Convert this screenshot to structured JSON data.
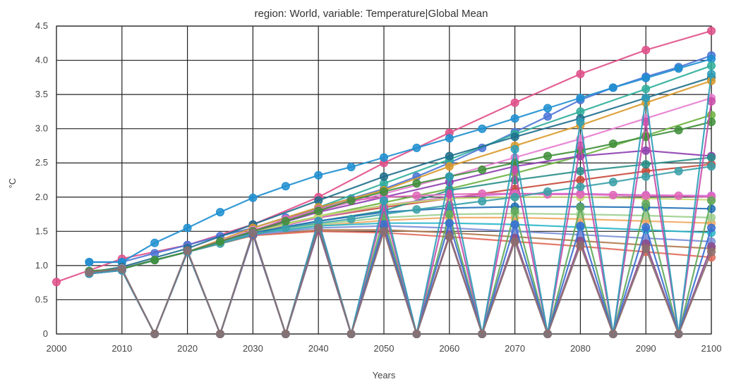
{
  "chart_data": {
    "type": "line",
    "title": "region: World, variable: Temperature|Global Mean",
    "xlabel": "Years",
    "ylabel": "°C",
    "xlim": [
      2000,
      2100
    ],
    "ylim": [
      0,
      4.5
    ],
    "x_ticks": [
      "2000",
      "2010",
      "2020",
      "2030",
      "2040",
      "2050",
      "2060",
      "2070",
      "2080",
      "2090",
      "2100"
    ],
    "y_ticks": [
      "0",
      "0.5",
      "1.0",
      "1.5",
      "2.0",
      "2.5",
      "3.0",
      "3.5",
      "4.0",
      "4.5"
    ],
    "grid": true,
    "legend": "none",
    "series": [
      {
        "color": "#e0508a",
        "x": [
          2000,
          2010,
          2020,
          2030,
          2040,
          2050,
          2060,
          2070,
          2080,
          2090,
          2100
        ],
        "values": [
          0.76,
          1.1,
          1.3,
          1.6,
          2.0,
          2.5,
          2.94,
          3.38,
          3.8,
          4.15,
          4.43
        ]
      },
      {
        "color": "#4a74d6",
        "x": [
          2005,
          2010,
          2015,
          2020,
          2025,
          2030,
          2035,
          2040,
          2045,
          2050,
          2055,
          2060,
          2065,
          2070,
          2075,
          2080,
          2085,
          2090,
          2095,
          2100
        ],
        "values": [
          1.05,
          1.05,
          1.18,
          1.3,
          1.43,
          1.55,
          1.7,
          1.84,
          1.98,
          2.12,
          2.3,
          2.5,
          2.72,
          2.95,
          3.18,
          3.42,
          3.6,
          3.76,
          3.9,
          4.07
        ]
      },
      {
        "color": "#1f8fd0",
        "x": [
          2005,
          2010,
          2015,
          2020,
          2025,
          2030,
          2035,
          2040,
          2045,
          2050,
          2055,
          2060,
          2065,
          2070,
          2075,
          2080,
          2085,
          2090,
          2095,
          2100
        ],
        "values": [
          1.05,
          1.05,
          1.33,
          1.55,
          1.78,
          1.99,
          2.16,
          2.32,
          2.44,
          2.58,
          2.72,
          2.86,
          3.0,
          3.15,
          3.3,
          3.45,
          3.6,
          3.74,
          3.88,
          4.02
        ]
      },
      {
        "color": "#2fae9b",
        "x": [
          2005,
          2010,
          2020,
          2030,
          2040,
          2050,
          2060,
          2070,
          2080,
          2090,
          2100
        ],
        "values": [
          0.9,
          0.95,
          1.2,
          1.5,
          1.85,
          2.2,
          2.55,
          2.92,
          3.25,
          3.58,
          3.92
        ]
      },
      {
        "color": "#1e6e8c",
        "x": [
          2005,
          2010,
          2020,
          2030,
          2040,
          2050,
          2060,
          2070,
          2080,
          2090,
          2100
        ],
        "values": [
          0.9,
          0.98,
          1.25,
          1.6,
          1.95,
          2.3,
          2.6,
          2.88,
          3.15,
          3.45,
          3.75
        ]
      },
      {
        "color": "#d99a2b",
        "x": [
          2005,
          2010,
          2020,
          2030,
          2040,
          2050,
          2060,
          2070,
          2080,
          2090,
          2100
        ],
        "values": [
          0.9,
          0.96,
          1.2,
          1.55,
          1.85,
          2.1,
          2.45,
          2.75,
          3.05,
          3.38,
          3.7
        ]
      },
      {
        "color": "#e57bcf",
        "x": [
          2005,
          2010,
          2020,
          2030,
          2040,
          2050,
          2060,
          2070,
          2080,
          2090,
          2100
        ],
        "values": [
          0.9,
          0.96,
          1.2,
          1.52,
          1.8,
          2.05,
          2.3,
          2.58,
          2.85,
          3.15,
          3.45
        ]
      },
      {
        "color": "#6cb33f",
        "x": [
          2005,
          2010,
          2020,
          2030,
          2040,
          2050,
          2060,
          2070,
          2080,
          2090,
          2100
        ],
        "values": [
          0.9,
          0.96,
          1.2,
          1.5,
          1.72,
          1.92,
          2.12,
          2.35,
          2.6,
          2.9,
          3.2
        ]
      },
      {
        "color": "#8e3fb0",
        "x": [
          2005,
          2010,
          2020,
          2030,
          2040,
          2050,
          2060,
          2070,
          2080,
          2090,
          2100
        ],
        "values": [
          0.9,
          0.96,
          1.2,
          1.5,
          1.78,
          2.0,
          2.22,
          2.45,
          2.6,
          2.68,
          2.6
        ]
      },
      {
        "color": "#c84a3c",
        "x": [
          2005,
          2010,
          2020,
          2030,
          2040,
          2050,
          2060,
          2070,
          2080,
          2090,
          2100
        ],
        "values": [
          0.9,
          0.96,
          1.2,
          1.48,
          1.7,
          1.85,
          1.98,
          2.12,
          2.25,
          2.38,
          2.48
        ]
      },
      {
        "color": "#2a8f8a",
        "x": [
          2005,
          2010,
          2020,
          2030,
          2040,
          2050,
          2060,
          2070,
          2080,
          2090,
          2100
        ],
        "values": [
          0.9,
          0.96,
          1.2,
          1.48,
          1.65,
          1.8,
          2.1,
          2.25,
          2.38,
          2.48,
          2.58
        ]
      },
      {
        "color": "#d06ad8",
        "x": [
          2005,
          2010,
          2020,
          2030,
          2040,
          2050,
          2060,
          2070,
          2080,
          2090,
          2100
        ],
        "values": [
          0.9,
          0.96,
          1.2,
          1.48,
          1.7,
          1.88,
          2.0,
          2.05,
          2.05,
          2.03,
          2.02
        ]
      },
      {
        "color": "#c5d96e",
        "x": [
          2005,
          2010,
          2020,
          2030,
          2040,
          2050,
          2060,
          2070,
          2080,
          2090,
          2100
        ],
        "values": [
          0.9,
          0.96,
          1.2,
          1.48,
          1.72,
          1.88,
          1.98,
          2.0,
          2.0,
          1.98,
          1.96
        ]
      },
      {
        "color": "#1f6fb5",
        "x": [
          2005,
          2010,
          2020,
          2030,
          2040,
          2050,
          2060,
          2070,
          2080,
          2090,
          2100
        ],
        "values": [
          0.9,
          0.96,
          1.2,
          1.48,
          1.65,
          1.78,
          1.84,
          1.86,
          1.86,
          1.85,
          1.83
        ]
      },
      {
        "color": "#f0a860",
        "x": [
          2005,
          2010,
          2020,
          2030,
          2040,
          2050,
          2060,
          2070,
          2080,
          2090,
          2100
        ],
        "values": [
          0.9,
          0.96,
          1.2,
          1.46,
          1.58,
          1.66,
          1.7,
          1.7,
          1.68,
          1.65,
          1.62
        ]
      },
      {
        "color": "#9fcf8f",
        "x": [
          2005,
          2010,
          2020,
          2030,
          2040,
          2050,
          2060,
          2070,
          2080,
          2090,
          2100
        ],
        "values": [
          0.9,
          0.96,
          1.2,
          1.46,
          1.6,
          1.7,
          1.75,
          1.76,
          1.75,
          1.73,
          1.7
        ]
      },
      {
        "color": "#2bb6c9",
        "x": [
          2005,
          2010,
          2020,
          2030,
          2040,
          2050,
          2060,
          2070,
          2080,
          2090,
          2100
        ],
        "values": [
          0.9,
          0.96,
          1.2,
          1.46,
          1.58,
          1.62,
          1.62,
          1.6,
          1.56,
          1.52,
          1.48
        ]
      },
      {
        "color": "#b07a4e",
        "x": [
          2005,
          2010,
          2020,
          2030,
          2040,
          2050,
          2060,
          2070,
          2080,
          2090,
          2100
        ],
        "values": [
          0.9,
          0.96,
          1.2,
          1.44,
          1.52,
          1.52,
          1.48,
          1.42,
          1.36,
          1.3,
          1.25
        ]
      },
      {
        "color": "#e06a5a",
        "x": [
          2005,
          2010,
          2020,
          2030,
          2040,
          2050,
          2060,
          2070,
          2080,
          2090,
          2100
        ],
        "values": [
          0.9,
          0.96,
          1.2,
          1.44,
          1.5,
          1.48,
          1.42,
          1.35,
          1.28,
          1.2,
          1.12
        ]
      },
      {
        "color": "#7a8fd8",
        "x": [
          2005,
          2010,
          2020,
          2030,
          2040,
          2050,
          2060,
          2070,
          2080,
          2090,
          2100
        ],
        "values": [
          0.9,
          0.96,
          1.2,
          1.45,
          1.55,
          1.58,
          1.55,
          1.5,
          1.45,
          1.4,
          1.35
        ]
      },
      {
        "color": "#e066b8",
        "x": [
          2005,
          2010,
          2015,
          2020,
          2025,
          2030,
          2035,
          2040,
          2045,
          2050,
          2055,
          2060,
          2065,
          2070,
          2075,
          2080,
          2085,
          2090,
          2095,
          2100
        ],
        "values": [
          0.92,
          0.95,
          1.08,
          1.2,
          1.35,
          1.5,
          1.68,
          1.82,
          1.95,
          2.0,
          2.02,
          2.04,
          2.05,
          2.05,
          2.04,
          2.04,
          2.03,
          2.02,
          2.02,
          2.0
        ]
      },
      {
        "color": "#3aa0a8",
        "x": [
          2005,
          2010,
          2015,
          2020,
          2025,
          2030,
          2035,
          2040,
          2045,
          2050,
          2055,
          2060,
          2065,
          2070,
          2075,
          2080,
          2085,
          2090,
          2095,
          2100
        ],
        "values": [
          0.92,
          0.95,
          1.08,
          1.2,
          1.32,
          1.45,
          1.55,
          1.62,
          1.68,
          1.75,
          1.82,
          1.88,
          1.94,
          2.0,
          2.08,
          2.15,
          2.22,
          2.3,
          2.38,
          2.45
        ]
      },
      {
        "color": "#3f8f3a",
        "x": [
          2005,
          2010,
          2015,
          2020,
          2025,
          2030,
          2035,
          2040,
          2045,
          2050,
          2055,
          2060,
          2065,
          2070,
          2075,
          2080,
          2085,
          2090,
          2095,
          2100
        ],
        "values": [
          0.92,
          0.95,
          1.08,
          1.2,
          1.35,
          1.5,
          1.65,
          1.8,
          1.95,
          2.08,
          2.2,
          2.3,
          2.4,
          2.5,
          2.6,
          2.68,
          2.78,
          2.88,
          2.98,
          3.1
        ]
      },
      {
        "color": "#8a4a8f",
        "x": [
          2005,
          2010,
          2015,
          2020,
          2025,
          2030,
          2035,
          2040,
          2045,
          2050,
          2055,
          2060,
          2065,
          2070,
          2075,
          2080,
          2085,
          2090,
          2095,
          2100
        ],
        "values": [
          0.88,
          0.93,
          0,
          1.2,
          0,
          1.45,
          0,
          1.52,
          0,
          1.55,
          0,
          1.45,
          0,
          1.4,
          0,
          1.36,
          0,
          1.32,
          0,
          1.28
        ]
      },
      {
        "color": "#5fa85a",
        "x": [
          2005,
          2010,
          2015,
          2020,
          2025,
          2030,
          2035,
          2040,
          2045,
          2050,
          2055,
          2060,
          2065,
          2070,
          2075,
          2080,
          2085,
          2090,
          2095,
          2100
        ],
        "values": [
          0.88,
          0.93,
          0,
          1.2,
          0,
          1.48,
          0,
          1.6,
          0,
          1.7,
          0,
          1.75,
          0,
          1.8,
          0,
          1.85,
          0,
          1.9,
          0,
          1.95
        ]
      },
      {
        "color": "#3b6fd0",
        "x": [
          2005,
          2010,
          2015,
          2020,
          2025,
          2030,
          2035,
          2040,
          2045,
          2050,
          2055,
          2060,
          2065,
          2070,
          2075,
          2080,
          2085,
          2090,
          2095,
          2100
        ],
        "values": [
          0.88,
          0.93,
          0,
          1.2,
          0,
          1.46,
          0,
          1.55,
          0,
          1.6,
          0,
          1.62,
          0,
          1.6,
          0,
          1.58,
          0,
          1.56,
          0,
          1.55
        ]
      },
      {
        "color": "#c84ea8",
        "x": [
          2005,
          2010,
          2015,
          2020,
          2025,
          2030,
          2035,
          2040,
          2045,
          2050,
          2055,
          2060,
          2065,
          2070,
          2075,
          2080,
          2085,
          2090,
          2095,
          2100
        ],
        "values": [
          0.88,
          0.93,
          0,
          1.2,
          0,
          1.48,
          0,
          1.65,
          0,
          1.85,
          0,
          2.05,
          0,
          2.4,
          0,
          2.75,
          0,
          3.1,
          0,
          3.4
        ]
      },
      {
        "color": "#2e9fb8",
        "x": [
          2005,
          2010,
          2015,
          2020,
          2025,
          2030,
          2035,
          2040,
          2045,
          2050,
          2055,
          2060,
          2065,
          2070,
          2075,
          2080,
          2085,
          2090,
          2095,
          2100
        ],
        "values": [
          0.88,
          0.93,
          0,
          1.2,
          0,
          1.48,
          0,
          1.65,
          0,
          1.95,
          0,
          2.3,
          0,
          2.7,
          0,
          3.1,
          0,
          3.45,
          0,
          3.8
        ]
      },
      {
        "color": "#8c6f6f",
        "x": [
          2005,
          2010,
          2015,
          2020,
          2025,
          2030,
          2035,
          2040,
          2045,
          2050,
          2055,
          2060,
          2065,
          2070,
          2075,
          2080,
          2085,
          2090,
          2095,
          2100
        ],
        "values": [
          0.9,
          0.95,
          0,
          1.22,
          0,
          1.48,
          0,
          1.55,
          0,
          1.5,
          0,
          1.42,
          0,
          1.35,
          0,
          1.3,
          0,
          1.25,
          0,
          1.2
        ]
      }
    ]
  }
}
